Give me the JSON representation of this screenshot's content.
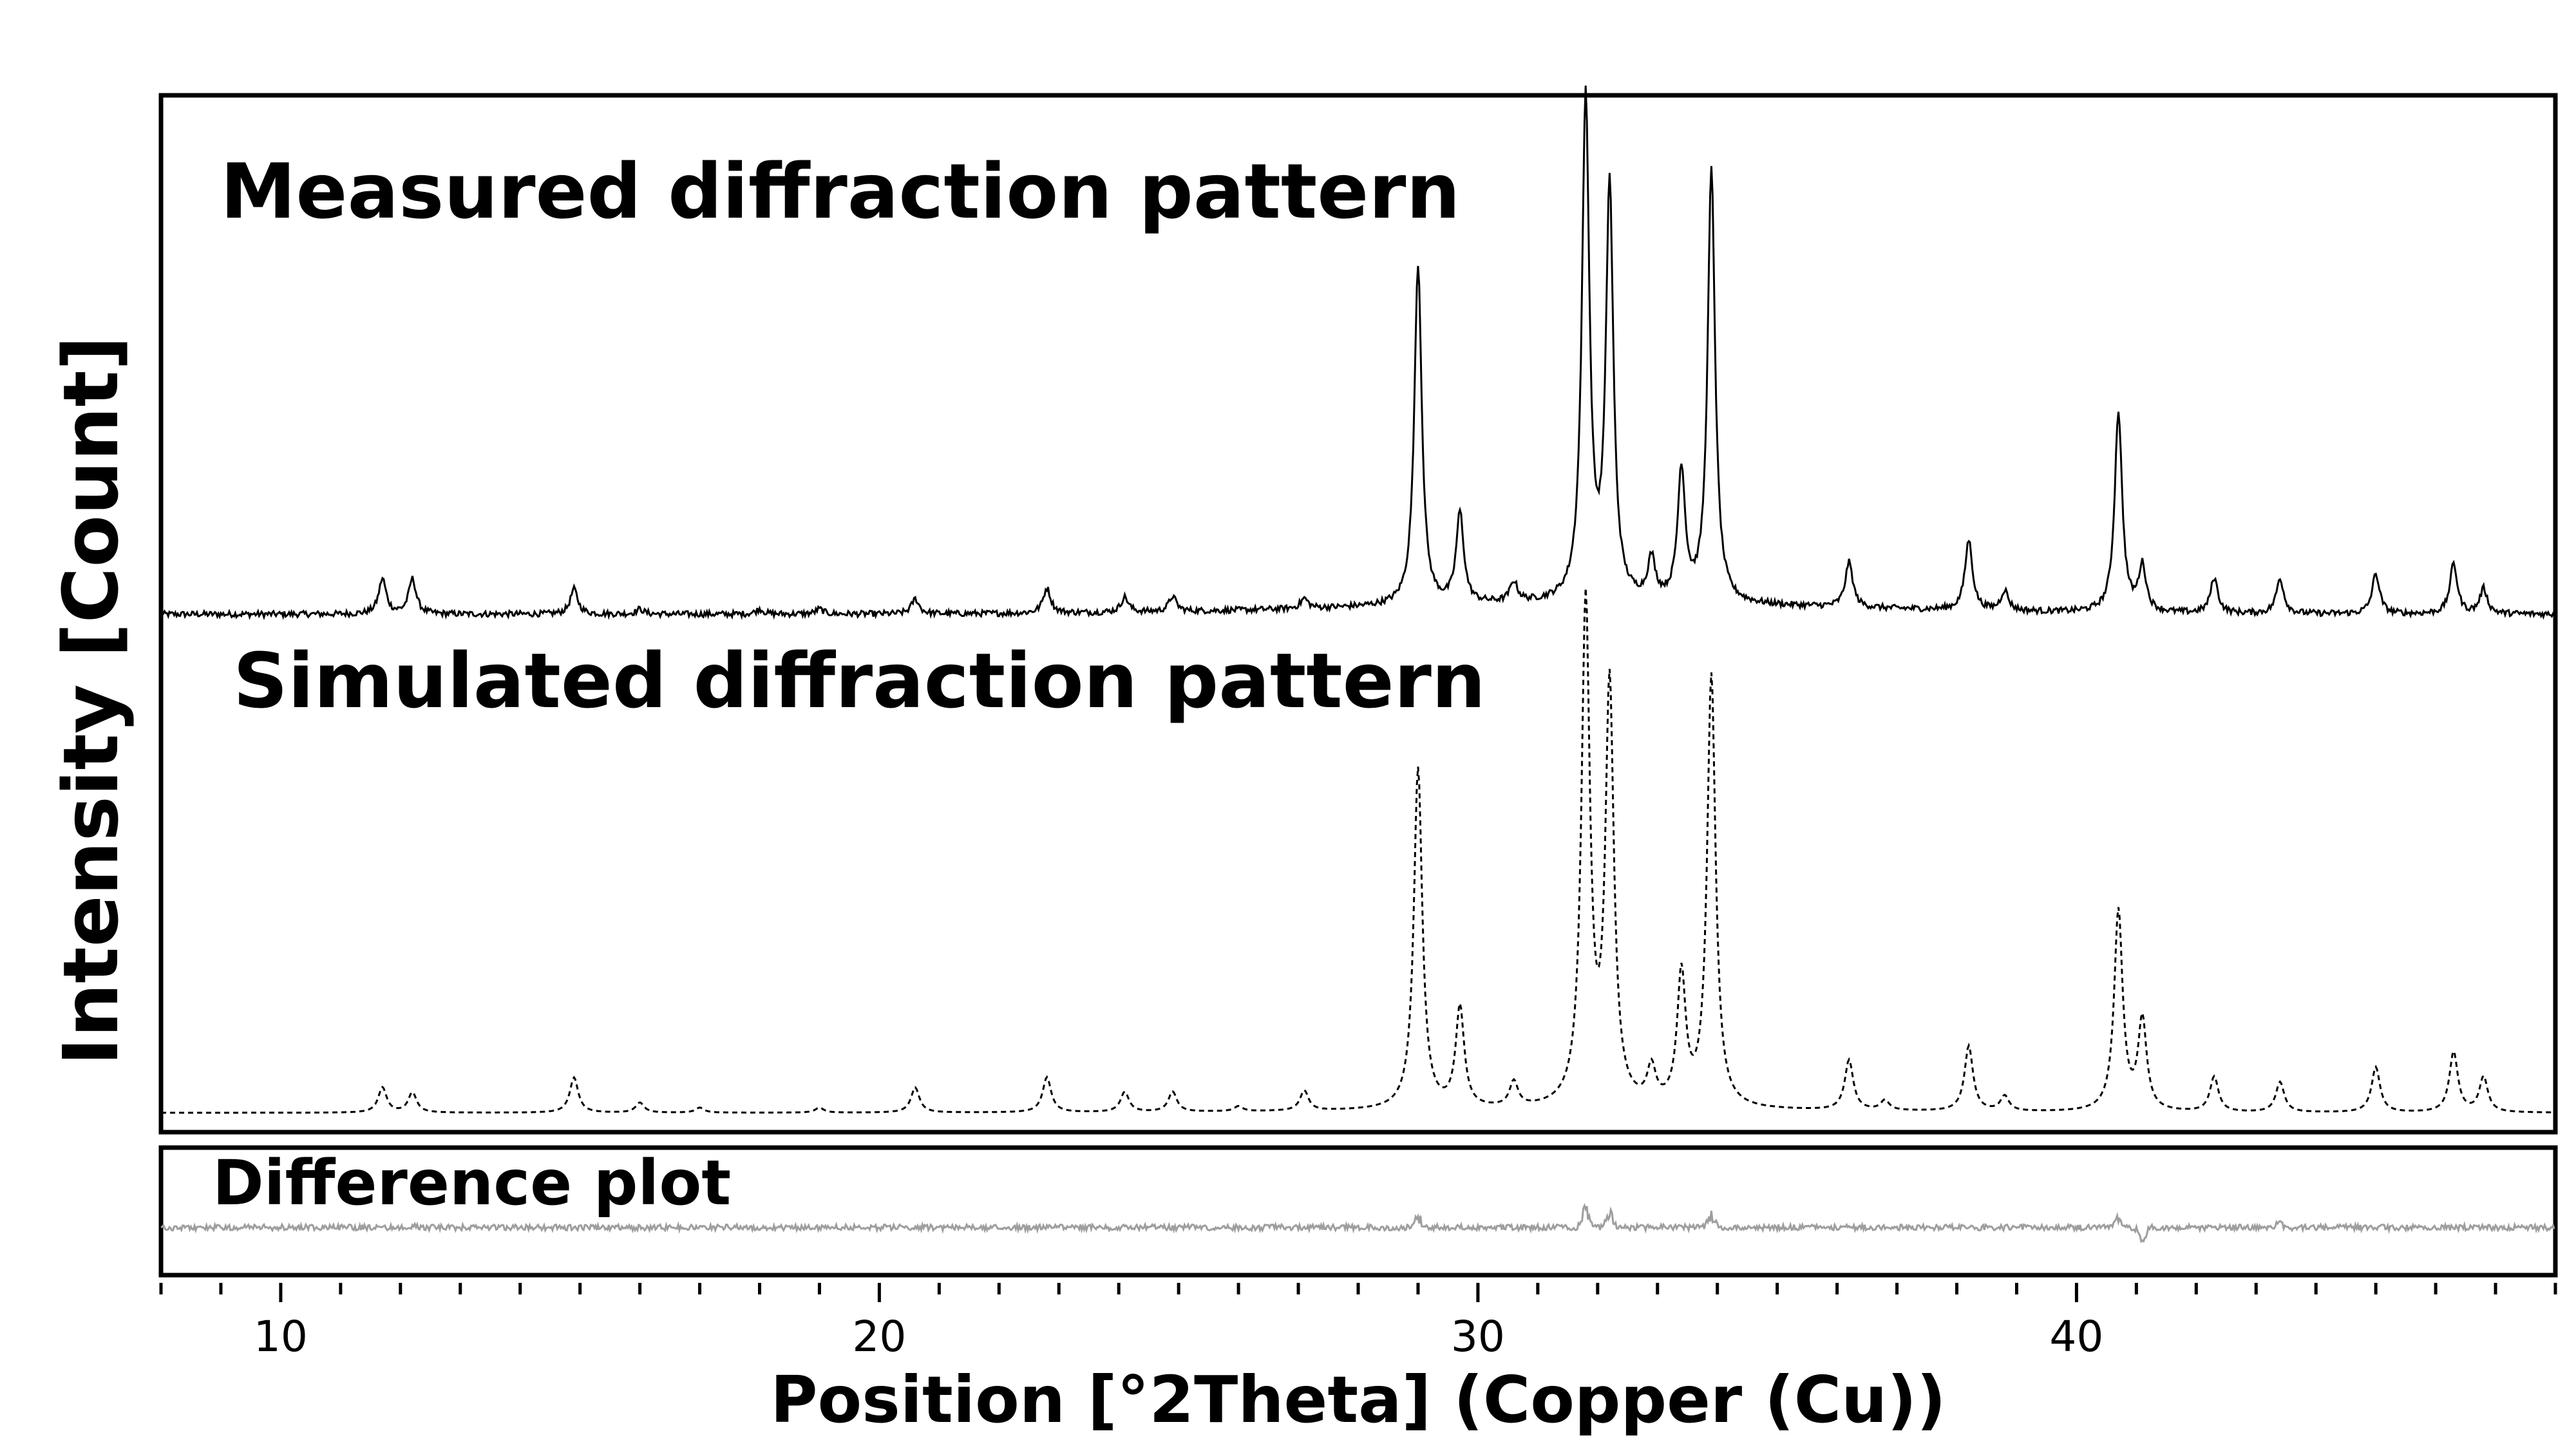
{
  "chart_data": {
    "type": "line",
    "xlabel": "Position [°2Theta] (Copper (Cu))",
    "ylabel": "Intensity [Count]",
    "xlim": [
      8,
      48
    ],
    "x_ticks": [
      10,
      20,
      30,
      40
    ],
    "x_minor_step": 1,
    "grid": false,
    "panels": [
      {
        "label": "Measured diffraction pattern",
        "line_style": "solid",
        "color": "#000000",
        "baseline": 0.04,
        "peaks": [
          {
            "x": 11.7,
            "h": 0.07
          },
          {
            "x": 12.2,
            "h": 0.07
          },
          {
            "x": 14.9,
            "h": 0.05
          },
          {
            "x": 16.0,
            "h": 0.01
          },
          {
            "x": 18.0,
            "h": 0.01
          },
          {
            "x": 19.0,
            "h": 0.01
          },
          {
            "x": 20.6,
            "h": 0.03
          },
          {
            "x": 22.8,
            "h": 0.05
          },
          {
            "x": 24.1,
            "h": 0.03
          },
          {
            "x": 24.9,
            "h": 0.03
          },
          {
            "x": 27.1,
            "h": 0.02
          },
          {
            "x": 29.0,
            "h": 0.68
          },
          {
            "x": 29.7,
            "h": 0.18
          },
          {
            "x": 30.6,
            "h": 0.04
          },
          {
            "x": 31.8,
            "h": 1.0
          },
          {
            "x": 32.2,
            "h": 0.82
          },
          {
            "x": 32.9,
            "h": 0.08
          },
          {
            "x": 33.4,
            "h": 0.26
          },
          {
            "x": 33.9,
            "h": 0.86
          },
          {
            "x": 36.2,
            "h": 0.09
          },
          {
            "x": 38.2,
            "h": 0.14
          },
          {
            "x": 38.8,
            "h": 0.04
          },
          {
            "x": 40.7,
            "h": 0.4
          },
          {
            "x": 41.1,
            "h": 0.09
          },
          {
            "x": 42.3,
            "h": 0.07
          },
          {
            "x": 43.4,
            "h": 0.07
          },
          {
            "x": 45.0,
            "h": 0.08
          },
          {
            "x": 46.3,
            "h": 0.1
          },
          {
            "x": 46.8,
            "h": 0.05
          }
        ]
      },
      {
        "label": "Simulated diffraction pattern",
        "line_style": "dashed",
        "color": "#000000",
        "baseline": 0.0,
        "peaks": [
          {
            "x": 11.7,
            "h": 0.05
          },
          {
            "x": 12.2,
            "h": 0.04
          },
          {
            "x": 14.9,
            "h": 0.07
          },
          {
            "x": 16.0,
            "h": 0.02
          },
          {
            "x": 17.0,
            "h": 0.01
          },
          {
            "x": 19.0,
            "h": 0.01
          },
          {
            "x": 20.6,
            "h": 0.05
          },
          {
            "x": 22.8,
            "h": 0.07
          },
          {
            "x": 24.1,
            "h": 0.04
          },
          {
            "x": 24.9,
            "h": 0.04
          },
          {
            "x": 26.0,
            "h": 0.01
          },
          {
            "x": 27.1,
            "h": 0.04
          },
          {
            "x": 29.0,
            "h": 0.68
          },
          {
            "x": 29.7,
            "h": 0.2
          },
          {
            "x": 30.6,
            "h": 0.05
          },
          {
            "x": 31.8,
            "h": 1.0
          },
          {
            "x": 32.2,
            "h": 0.83
          },
          {
            "x": 32.9,
            "h": 0.07
          },
          {
            "x": 33.4,
            "h": 0.26
          },
          {
            "x": 33.9,
            "h": 0.86
          },
          {
            "x": 36.2,
            "h": 0.1
          },
          {
            "x": 36.8,
            "h": 0.02
          },
          {
            "x": 38.2,
            "h": 0.13
          },
          {
            "x": 38.8,
            "h": 0.03
          },
          {
            "x": 40.7,
            "h": 0.4
          },
          {
            "x": 41.1,
            "h": 0.18
          },
          {
            "x": 42.3,
            "h": 0.07
          },
          {
            "x": 43.4,
            "h": 0.06
          },
          {
            "x": 45.0,
            "h": 0.09
          },
          {
            "x": 46.3,
            "h": 0.12
          },
          {
            "x": 46.8,
            "h": 0.07
          }
        ]
      },
      {
        "label": "Difference plot",
        "line_style": "solid",
        "color": "#9e9e9e",
        "baseline": 0.0,
        "spikes": [
          {
            "x": 12.2,
            "h": 0.12
          },
          {
            "x": 29.0,
            "h": 0.5
          },
          {
            "x": 31.8,
            "h": 0.9
          },
          {
            "x": 32.2,
            "h": 0.7
          },
          {
            "x": 33.9,
            "h": 0.6
          },
          {
            "x": 40.7,
            "h": 0.5
          },
          {
            "x": 41.1,
            "h": -0.6
          },
          {
            "x": 43.4,
            "h": 0.2
          }
        ]
      }
    ]
  }
}
